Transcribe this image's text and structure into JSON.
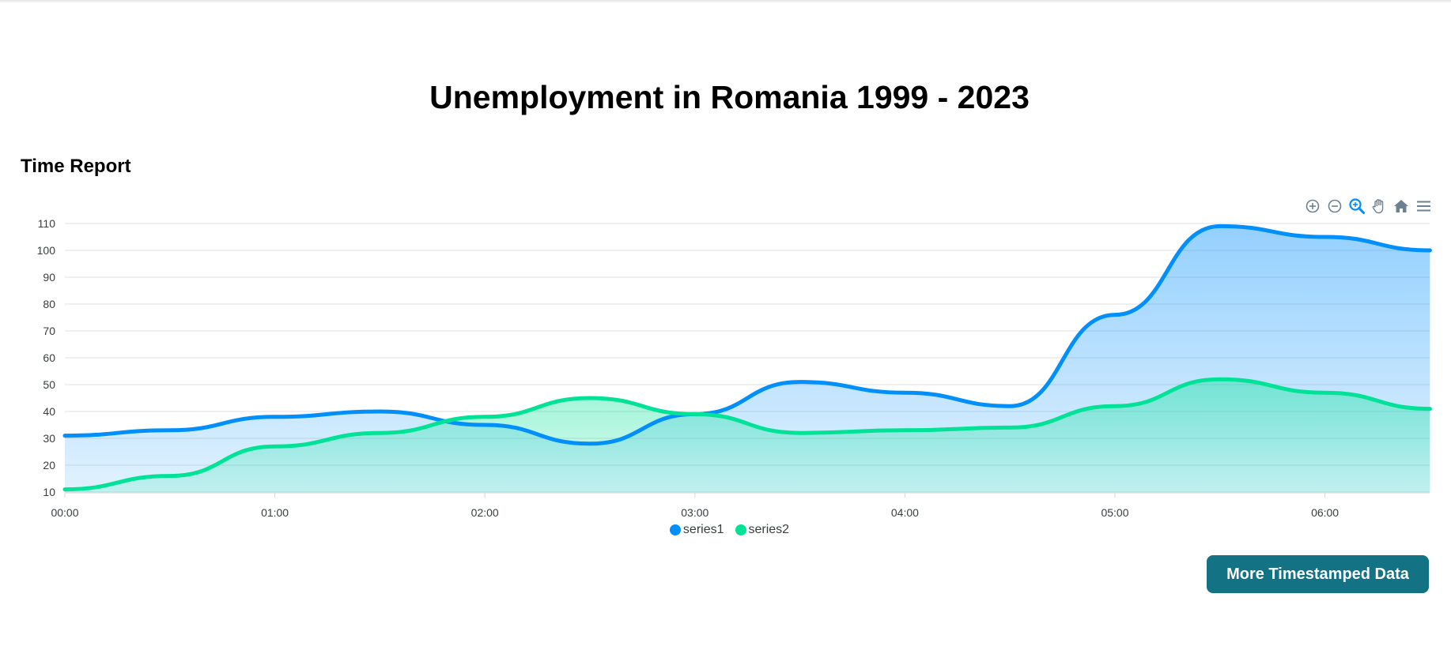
{
  "page": {
    "title": "Unemployment in Romania 1999 - 2023"
  },
  "toolbar": {
    "icons": [
      "zoom-in-icon",
      "zoom-out-icon",
      "selection-zoom-icon",
      "pan-hand-icon",
      "reset-home-icon",
      "menu-icon"
    ],
    "active_color": "#008ffb",
    "inactive_color": "#6e8192"
  },
  "button": {
    "label": "More Timestamped Data",
    "color": "#137284"
  },
  "chart_data": {
    "type": "area",
    "title": "Time Report",
    "xlabel": "",
    "ylabel": "",
    "x": [
      "00:00",
      "00:30",
      "01:00",
      "01:30",
      "02:00",
      "02:30",
      "03:00",
      "03:30",
      "04:00",
      "04:30",
      "05:00",
      "05:30",
      "06:00",
      "06:30"
    ],
    "x_tick_labels": [
      "00:00",
      "01:00",
      "02:00",
      "03:00",
      "04:00",
      "05:00",
      "06:00"
    ],
    "y_tick_labels": [
      "10",
      "20",
      "30",
      "40",
      "50",
      "60",
      "70",
      "80",
      "90",
      "100",
      "110"
    ],
    "ylim": [
      10,
      110
    ],
    "grid": true,
    "legend_position": "bottom-center",
    "series": [
      {
        "name": "series1",
        "color": "#008ffb",
        "values": [
          31,
          33,
          38,
          40,
          35,
          28,
          39,
          51,
          47,
          42,
          76,
          109,
          105,
          100
        ]
      },
      {
        "name": "series2",
        "color": "#00e396",
        "values": [
          11,
          16,
          27,
          32,
          38,
          45,
          39,
          32,
          33,
          34,
          42,
          52,
          47,
          41
        ]
      }
    ]
  }
}
